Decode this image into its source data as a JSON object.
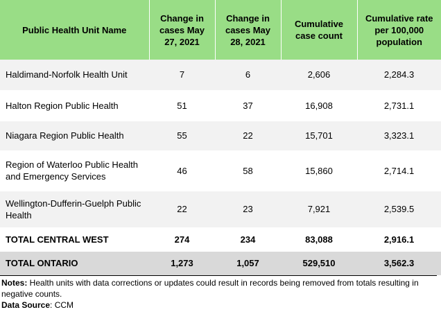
{
  "table": {
    "headers": [
      "Public Health Unit Name",
      "Change in cases May 27, 2021",
      "Change in cases May 28, 2021",
      "Cumulative case count",
      "Cumulative rate per 100,000 population"
    ],
    "rows": [
      {
        "name": "Haldimand-Norfolk Health Unit",
        "may27": "7",
        "may28": "6",
        "cumulative": "2,606",
        "rate": "2,284.3"
      },
      {
        "name": "Halton Region Public Health",
        "may27": "51",
        "may28": "37",
        "cumulative": "16,908",
        "rate": "2,731.1"
      },
      {
        "name": "Niagara Region Public Health",
        "may27": "55",
        "may28": "22",
        "cumulative": "15,701",
        "rate": "3,323.1"
      },
      {
        "name": "Region of Waterloo Public Health and Emergency Services",
        "may27": "46",
        "may28": "58",
        "cumulative": "15,860",
        "rate": "2,714.1"
      },
      {
        "name": "Wellington-Dufferin-Guelph Public Health",
        "may27": "22",
        "may28": "23",
        "cumulative": "7,921",
        "rate": "2,539.5"
      },
      {
        "name": "TOTAL CENTRAL WEST",
        "may27": "274",
        "may28": "234",
        "cumulative": "83,088",
        "rate": "2,916.1"
      },
      {
        "name": "TOTAL ONTARIO",
        "may27": "1,273",
        "may28": "1,057",
        "cumulative": "529,510",
        "rate": "3,562.3"
      }
    ]
  },
  "notes": {
    "notes_label": "Notes:",
    "notes_text": " Health units with data corrections or updates could result in records being removed from totals resulting in negative counts.",
    "source_label": "Data Source",
    "source_text": ": CCM"
  },
  "colors": {
    "header_bg": "#99dd86",
    "stripe_bg": "#f2f2f2",
    "total_ontario_bg": "#d9d9d9"
  }
}
